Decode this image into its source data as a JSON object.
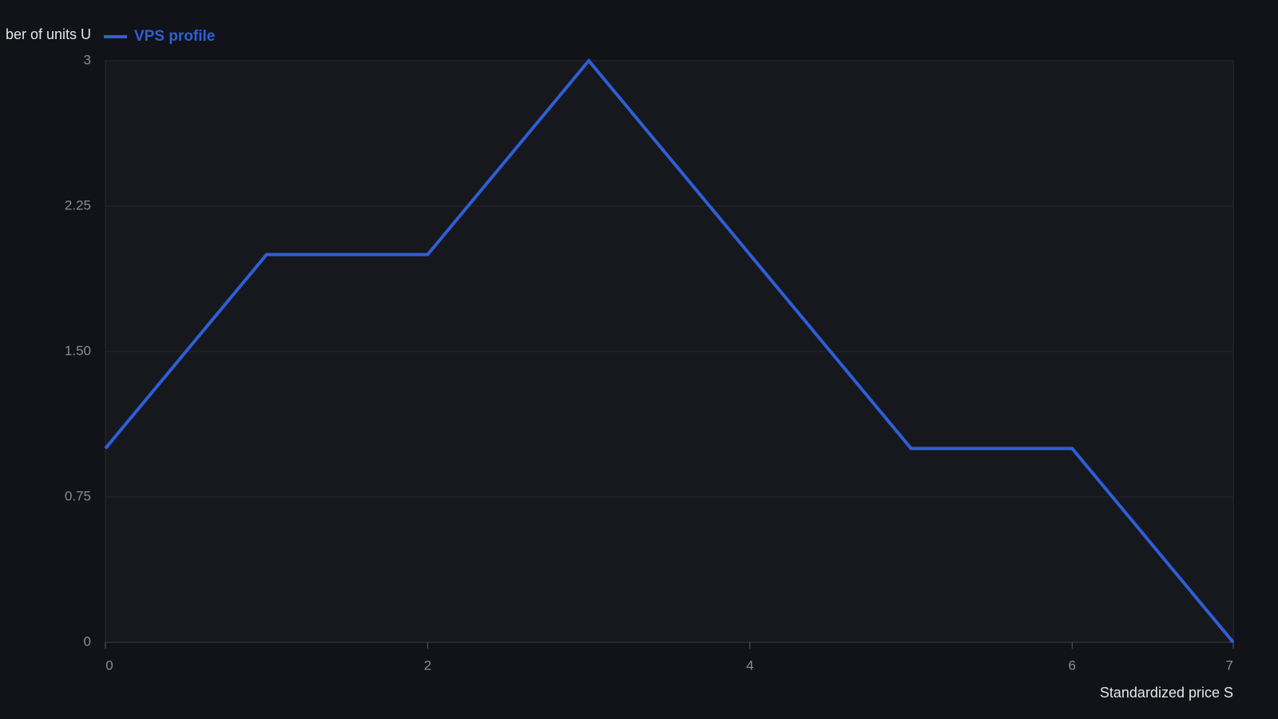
{
  "chart_data": {
    "type": "line",
    "y_label": "ber of units U",
    "x_label": "Standardized price S",
    "x": [
      0,
      1,
      2,
      3,
      4,
      5,
      6,
      7
    ],
    "series": [
      {
        "name": "VPS profile",
        "color": "#2f5ed6",
        "values": [
          1,
          2,
          2,
          3,
          2,
          1,
          1,
          0
        ]
      }
    ],
    "xlim": [
      0,
      7
    ],
    "xticks": [
      0,
      2,
      4,
      6,
      7
    ],
    "ylim": [
      0,
      3
    ],
    "yticks": [
      0,
      0.75,
      {
        "value": 1.5,
        "label": "1.50"
      },
      2.25,
      3
    ],
    "grid": true
  }
}
